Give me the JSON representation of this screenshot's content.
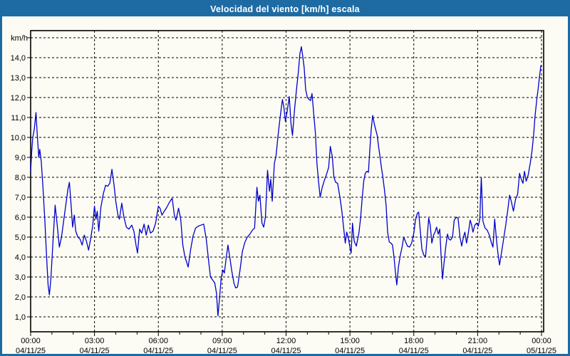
{
  "window": {
    "title": "Velocidad del viento [km/h] escala"
  },
  "chart_data": {
    "type": "line",
    "title": "Velocidad del viento [km/h] escala",
    "xlabel": "",
    "ylabel": "km/h",
    "unit_label": "km/h",
    "legend": "none",
    "grid": "dashed",
    "ylim": [
      0.25,
      15.35
    ],
    "xlim_hours": [
      0,
      24
    ],
    "line_color": "#0000cc",
    "grid_color": "#000000",
    "background_color": "#fcfcf4",
    "titlebar_color": "#1e6ba3",
    "yticks": [
      {
        "value": 1,
        "label": "1,0"
      },
      {
        "value": 2,
        "label": "2,0"
      },
      {
        "value": 3,
        "label": "3,0"
      },
      {
        "value": 4,
        "label": "4,0"
      },
      {
        "value": 5,
        "label": "5,0"
      },
      {
        "value": 6,
        "label": "6,0"
      },
      {
        "value": 7,
        "label": "7,0"
      },
      {
        "value": 8,
        "label": "8,0"
      },
      {
        "value": 9,
        "label": "9,0"
      },
      {
        "value": 10,
        "label": "10,0"
      },
      {
        "value": 11,
        "label": "11,0"
      },
      {
        "value": 12,
        "label": "12,0"
      },
      {
        "value": 13,
        "label": "13,0"
      },
      {
        "value": 14,
        "label": "14,0"
      },
      {
        "value": 15,
        "label": ""
      }
    ],
    "xticks": [
      {
        "hour": 0,
        "time": "00:00",
        "date": "04/11/25"
      },
      {
        "hour": 3,
        "time": "03:00",
        "date": "04/11/25"
      },
      {
        "hour": 6,
        "time": "06:00",
        "date": "04/11/25"
      },
      {
        "hour": 9,
        "time": "09:00",
        "date": "04/11/25"
      },
      {
        "hour": 12,
        "time": "12:00",
        "date": "04/11/25"
      },
      {
        "hour": 15,
        "time": "15:00",
        "date": "04/11/25"
      },
      {
        "hour": 18,
        "time": "18:00",
        "date": "04/11/25"
      },
      {
        "hour": 21,
        "time": "21:00",
        "date": "04/11/25"
      },
      {
        "hour": 24,
        "time": "00:00",
        "date": "05/11/25"
      }
    ],
    "minor_xtick_every_hours": 1,
    "series": [
      {
        "name": "Velocidad del viento [km/h]",
        "points": [
          [
            0.0,
            8.3
          ],
          [
            0.05,
            9.3
          ],
          [
            0.1,
            10.0
          ],
          [
            0.17,
            10.4
          ],
          [
            0.25,
            11.25
          ],
          [
            0.3,
            10.3
          ],
          [
            0.38,
            9.0
          ],
          [
            0.43,
            9.4
          ],
          [
            0.5,
            8.8
          ],
          [
            0.58,
            7.5
          ],
          [
            0.67,
            5.8
          ],
          [
            0.75,
            4.0
          ],
          [
            0.82,
            2.6
          ],
          [
            0.88,
            2.1
          ],
          [
            0.95,
            2.9
          ],
          [
            1.05,
            4.8
          ],
          [
            1.15,
            6.6
          ],
          [
            1.25,
            5.6
          ],
          [
            1.35,
            4.5
          ],
          [
            1.45,
            5.0
          ],
          [
            1.55,
            5.8
          ],
          [
            1.65,
            6.6
          ],
          [
            1.75,
            7.4
          ],
          [
            1.82,
            7.75
          ],
          [
            1.9,
            6.6
          ],
          [
            1.97,
            5.5
          ],
          [
            2.05,
            6.1
          ],
          [
            2.12,
            5.3
          ],
          [
            2.22,
            5.0
          ],
          [
            2.32,
            4.9
          ],
          [
            2.42,
            4.6
          ],
          [
            2.52,
            5.1
          ],
          [
            2.62,
            4.8
          ],
          [
            2.72,
            4.35
          ],
          [
            2.82,
            4.9
          ],
          [
            2.92,
            5.6
          ],
          [
            3.0,
            6.55
          ],
          [
            3.07,
            5.9
          ],
          [
            3.13,
            6.3
          ],
          [
            3.2,
            5.3
          ],
          [
            3.3,
            6.5
          ],
          [
            3.42,
            7.2
          ],
          [
            3.52,
            7.6
          ],
          [
            3.62,
            7.55
          ],
          [
            3.72,
            7.7
          ],
          [
            3.82,
            8.4
          ],
          [
            3.92,
            7.6
          ],
          [
            4.0,
            6.8
          ],
          [
            4.1,
            6.1
          ],
          [
            4.17,
            5.9
          ],
          [
            4.28,
            6.7
          ],
          [
            4.38,
            6.0
          ],
          [
            4.5,
            5.5
          ],
          [
            4.62,
            5.4
          ],
          [
            4.75,
            5.6
          ],
          [
            4.85,
            5.3
          ],
          [
            4.95,
            4.6
          ],
          [
            5.02,
            4.2
          ],
          [
            5.12,
            5.4
          ],
          [
            5.22,
            5.2
          ],
          [
            5.33,
            5.65
          ],
          [
            5.43,
            5.1
          ],
          [
            5.53,
            5.6
          ],
          [
            5.63,
            5.2
          ],
          [
            5.75,
            5.3
          ],
          [
            5.87,
            5.7
          ],
          [
            6.0,
            6.55
          ],
          [
            6.08,
            6.45
          ],
          [
            6.17,
            6.1
          ],
          [
            6.28,
            6.3
          ],
          [
            6.4,
            6.5
          ],
          [
            6.52,
            6.75
          ],
          [
            6.65,
            6.95
          ],
          [
            6.75,
            6.1
          ],
          [
            6.83,
            5.85
          ],
          [
            6.95,
            6.45
          ],
          [
            7.05,
            5.9
          ],
          [
            7.15,
            4.6
          ],
          [
            7.25,
            4.0
          ],
          [
            7.4,
            3.5
          ],
          [
            7.52,
            4.4
          ],
          [
            7.63,
            5.05
          ],
          [
            7.75,
            5.45
          ],
          [
            7.88,
            5.55
          ],
          [
            8.0,
            5.6
          ],
          [
            8.13,
            5.65
          ],
          [
            8.25,
            4.9
          ],
          [
            8.35,
            3.9
          ],
          [
            8.45,
            3.0
          ],
          [
            8.55,
            2.85
          ],
          [
            8.65,
            2.7
          ],
          [
            8.73,
            2.2
          ],
          [
            8.8,
            1.05
          ],
          [
            8.88,
            2.0
          ],
          [
            8.95,
            2.95
          ],
          [
            9.03,
            3.35
          ],
          [
            9.1,
            3.2
          ],
          [
            9.18,
            3.9
          ],
          [
            9.27,
            4.6
          ],
          [
            9.37,
            3.9
          ],
          [
            9.45,
            3.3
          ],
          [
            9.55,
            2.7
          ],
          [
            9.63,
            2.45
          ],
          [
            9.72,
            2.5
          ],
          [
            9.83,
            3.3
          ],
          [
            9.95,
            4.3
          ],
          [
            10.07,
            4.75
          ],
          [
            10.18,
            5.0
          ],
          [
            10.3,
            5.15
          ],
          [
            10.42,
            5.35
          ],
          [
            10.52,
            5.45
          ],
          [
            10.63,
            7.5
          ],
          [
            10.7,
            6.8
          ],
          [
            10.77,
            7.1
          ],
          [
            10.87,
            5.7
          ],
          [
            10.95,
            5.5
          ],
          [
            11.03,
            6.0
          ],
          [
            11.13,
            8.35
          ],
          [
            11.22,
            7.3
          ],
          [
            11.28,
            7.9
          ],
          [
            11.35,
            6.8
          ],
          [
            11.45,
            8.7
          ],
          [
            11.53,
            9.1
          ],
          [
            11.62,
            10.05
          ],
          [
            11.7,
            10.8
          ],
          [
            11.78,
            11.5
          ],
          [
            11.83,
            11.9
          ],
          [
            11.9,
            11.5
          ],
          [
            11.97,
            10.8
          ],
          [
            12.05,
            11.3
          ],
          [
            12.15,
            12.05
          ],
          [
            12.23,
            10.7
          ],
          [
            12.3,
            10.1
          ],
          [
            12.4,
            11.4
          ],
          [
            12.5,
            12.5
          ],
          [
            12.58,
            13.3
          ],
          [
            12.65,
            14.2
          ],
          [
            12.72,
            14.55
          ],
          [
            12.78,
            14.1
          ],
          [
            12.85,
            13.5
          ],
          [
            12.92,
            12.4
          ],
          [
            13.0,
            12.0
          ],
          [
            13.08,
            11.9
          ],
          [
            13.15,
            11.85
          ],
          [
            13.22,
            12.2
          ],
          [
            13.3,
            11.2
          ],
          [
            13.38,
            10.2
          ],
          [
            13.45,
            8.7
          ],
          [
            13.53,
            7.75
          ],
          [
            13.6,
            7.0
          ],
          [
            13.7,
            7.5
          ],
          [
            13.8,
            7.85
          ],
          [
            13.9,
            8.15
          ],
          [
            14.0,
            8.5
          ],
          [
            14.08,
            9.55
          ],
          [
            14.17,
            9.05
          ],
          [
            14.25,
            8.0
          ],
          [
            14.33,
            7.75
          ],
          [
            14.42,
            7.7
          ],
          [
            14.53,
            7.0
          ],
          [
            14.62,
            6.3
          ],
          [
            14.7,
            5.5
          ],
          [
            14.78,
            4.7
          ],
          [
            14.85,
            5.25
          ],
          [
            14.92,
            5.0
          ],
          [
            15.0,
            4.5
          ],
          [
            15.06,
            4.2
          ],
          [
            15.12,
            5.7
          ],
          [
            15.2,
            4.8
          ],
          [
            15.3,
            4.55
          ],
          [
            15.42,
            5.2
          ],
          [
            15.5,
            5.95
          ],
          [
            15.57,
            6.9
          ],
          [
            15.65,
            7.8
          ],
          [
            15.72,
            8.2
          ],
          [
            15.8,
            8.3
          ],
          [
            15.87,
            8.25
          ],
          [
            15.93,
            9.3
          ],
          [
            16.0,
            10.4
          ],
          [
            16.07,
            11.1
          ],
          [
            16.15,
            10.65
          ],
          [
            16.22,
            10.35
          ],
          [
            16.28,
            10.1
          ],
          [
            16.35,
            9.5
          ],
          [
            16.42,
            9.0
          ],
          [
            16.48,
            8.5
          ],
          [
            16.55,
            8.0
          ],
          [
            16.62,
            7.4
          ],
          [
            16.7,
            6.6
          ],
          [
            16.77,
            5.25
          ],
          [
            16.85,
            4.75
          ],
          [
            16.93,
            4.7
          ],
          [
            17.0,
            4.6
          ],
          [
            17.07,
            4.0
          ],
          [
            17.13,
            3.3
          ],
          [
            17.2,
            2.6
          ],
          [
            17.28,
            3.5
          ],
          [
            17.37,
            4.1
          ],
          [
            17.45,
            4.5
          ],
          [
            17.53,
            5.0
          ],
          [
            17.62,
            4.75
          ],
          [
            17.7,
            4.55
          ],
          [
            17.8,
            4.5
          ],
          [
            17.9,
            4.7
          ],
          [
            18.0,
            5.2
          ],
          [
            18.08,
            5.85
          ],
          [
            18.17,
            6.2
          ],
          [
            18.23,
            6.25
          ],
          [
            18.3,
            5.4
          ],
          [
            18.38,
            4.4
          ],
          [
            18.47,
            4.1
          ],
          [
            18.55,
            4.0
          ],
          [
            18.63,
            5.0
          ],
          [
            18.7,
            5.95
          ],
          [
            18.77,
            5.6
          ],
          [
            18.85,
            4.7
          ],
          [
            18.93,
            5.1
          ],
          [
            19.0,
            5.25
          ],
          [
            19.07,
            5.5
          ],
          [
            19.15,
            5.15
          ],
          [
            19.22,
            5.4
          ],
          [
            19.28,
            4.1
          ],
          [
            19.35,
            2.9
          ],
          [
            19.42,
            3.7
          ],
          [
            19.5,
            4.5
          ],
          [
            19.58,
            5.15
          ],
          [
            19.65,
            4.9
          ],
          [
            19.73,
            4.85
          ],
          [
            19.82,
            5.0
          ],
          [
            19.9,
            5.85
          ],
          [
            20.0,
            6.0
          ],
          [
            20.08,
            5.95
          ],
          [
            20.17,
            5.0
          ],
          [
            20.25,
            4.55
          ],
          [
            20.33,
            5.0
          ],
          [
            20.4,
            5.25
          ],
          [
            20.48,
            4.7
          ],
          [
            20.57,
            5.25
          ],
          [
            20.65,
            5.85
          ],
          [
            20.72,
            5.6
          ],
          [
            20.78,
            5.25
          ],
          [
            20.87,
            5.6
          ],
          [
            20.95,
            5.7
          ],
          [
            21.03,
            5.55
          ],
          [
            21.1,
            5.9
          ],
          [
            21.17,
            8.0
          ],
          [
            21.25,
            5.8
          ],
          [
            21.35,
            5.45
          ],
          [
            21.45,
            5.35
          ],
          [
            21.55,
            5.1
          ],
          [
            21.65,
            4.7
          ],
          [
            21.72,
            4.5
          ],
          [
            21.8,
            5.9
          ],
          [
            21.88,
            4.9
          ],
          [
            21.95,
            4.2
          ],
          [
            22.03,
            3.6
          ],
          [
            22.12,
            4.2
          ],
          [
            22.22,
            4.9
          ],
          [
            22.32,
            5.6
          ],
          [
            22.42,
            6.4
          ],
          [
            22.5,
            7.1
          ],
          [
            22.58,
            6.8
          ],
          [
            22.68,
            6.3
          ],
          [
            22.78,
            6.9
          ],
          [
            22.88,
            7.15
          ],
          [
            22.97,
            8.2
          ],
          [
            23.05,
            7.9
          ],
          [
            23.13,
            7.7
          ],
          [
            23.2,
            8.3
          ],
          [
            23.28,
            7.8
          ],
          [
            23.37,
            8.1
          ],
          [
            23.47,
            8.7
          ],
          [
            23.55,
            9.3
          ],
          [
            23.63,
            10.1
          ],
          [
            23.7,
            11.1
          ],
          [
            23.78,
            11.9
          ],
          [
            23.85,
            12.5
          ],
          [
            23.9,
            13.0
          ],
          [
            23.97,
            13.6
          ]
        ]
      }
    ]
  }
}
